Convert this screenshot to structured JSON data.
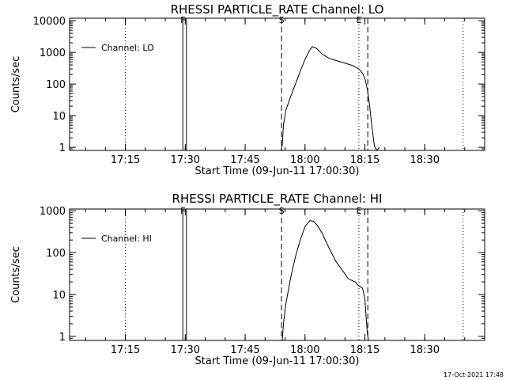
{
  "footer": {
    "timestamp": "17-Oct-2021 17:48"
  },
  "chart_data": [
    {
      "type": "line",
      "title": "RHESSI PARTICLE_RATE Channel: LO",
      "xlabel": "Start Time (09-Jun-11 17:00:30)",
      "ylabel": "Counts/sec",
      "xlim": [
        17.017,
        18.75
      ],
      "ylim": [
        0.8,
        12000
      ],
      "yscale": "log",
      "xticks": [
        {
          "v": 17.25,
          "label": "17:15"
        },
        {
          "v": 17.5,
          "label": "17:30"
        },
        {
          "v": 17.75,
          "label": "17:45"
        },
        {
          "v": 18.0,
          "label": "18:00"
        },
        {
          "v": 18.25,
          "label": "18:15"
        },
        {
          "v": 18.5,
          "label": "18:30"
        }
      ],
      "yticks": [
        {
          "v": 1,
          "label": "1"
        },
        {
          "v": 10,
          "label": "10"
        },
        {
          "v": 100,
          "label": "100"
        },
        {
          "v": 1000,
          "label": "1000"
        },
        {
          "v": 10000,
          "label": "10000"
        }
      ],
      "legend": {
        "placement": "top-left",
        "entries": [
          "Channel: LO"
        ]
      },
      "series": [
        {
          "name": "Channel: LO",
          "x": [
            17.9,
            17.905,
            17.91,
            17.92,
            17.94,
            17.96,
            17.98,
            18.0,
            18.02,
            18.03,
            18.04,
            18.05,
            18.07,
            18.1,
            18.13,
            18.17,
            18.2,
            18.225,
            18.24,
            18.25,
            18.26,
            18.27,
            18.28,
            18.29,
            18.3,
            18.31
          ],
          "y": [
            0.8,
            1.2,
            5,
            15,
            40,
            100,
            250,
            600,
            1200,
            1500,
            1450,
            1300,
            900,
            650,
            550,
            450,
            380,
            300,
            220,
            150,
            70,
            20,
            4,
            1.1,
            0.8,
            1.0
          ]
        }
      ],
      "vlines": [
        {
          "x": 17.25,
          "style": "dotted",
          "label": ""
        },
        {
          "x": 17.49,
          "style": "solid",
          "label": "F"
        },
        {
          "x": 17.505,
          "style": "solid",
          "label": ""
        },
        {
          "x": 17.902,
          "style": "dashed",
          "label": "S"
        },
        {
          "x": 18.225,
          "style": "dotted",
          "label": "E"
        },
        {
          "x": 18.262,
          "style": "dashed",
          "label": ""
        },
        {
          "x": 18.66,
          "style": "dotted",
          "label": ""
        }
      ]
    },
    {
      "type": "line",
      "title": "RHESSI PARTICLE_RATE Channel: HI",
      "xlabel": "Start Time (09-Jun-11 17:00:30)",
      "ylabel": "Counts/sec",
      "xlim": [
        17.017,
        18.75
      ],
      "ylim": [
        0.8,
        1100
      ],
      "yscale": "log",
      "xticks": [
        {
          "v": 17.25,
          "label": "17:15"
        },
        {
          "v": 17.5,
          "label": "17:30"
        },
        {
          "v": 17.75,
          "label": "17:45"
        },
        {
          "v": 18.0,
          "label": "18:00"
        },
        {
          "v": 18.25,
          "label": "18:15"
        },
        {
          "v": 18.5,
          "label": "18:30"
        }
      ],
      "yticks": [
        {
          "v": 1,
          "label": "1"
        },
        {
          "v": 10,
          "label": "10"
        },
        {
          "v": 100,
          "label": "100"
        },
        {
          "v": 1000,
          "label": "1000"
        }
      ],
      "legend": {
        "placement": "top-left",
        "entries": [
          "Channel: HI"
        ]
      },
      "series": [
        {
          "name": "Channel: HI",
          "x": [
            17.905,
            17.91,
            17.92,
            17.94,
            17.96,
            17.98,
            18.0,
            18.02,
            18.035,
            18.05,
            18.07,
            18.1,
            18.13,
            18.16,
            18.18,
            18.2,
            18.21,
            18.22,
            18.24,
            18.25,
            18.255,
            18.26,
            18.265
          ],
          "y": [
            0.8,
            2,
            6,
            25,
            80,
            200,
            420,
            580,
            560,
            460,
            300,
            130,
            60,
            35,
            24,
            21,
            20,
            17,
            14,
            8,
            3,
            1.2,
            0.8
          ]
        }
      ],
      "vlines": [
        {
          "x": 17.25,
          "style": "dotted",
          "label": ""
        },
        {
          "x": 17.49,
          "style": "solid",
          "label": "F"
        },
        {
          "x": 17.505,
          "style": "solid",
          "label": ""
        },
        {
          "x": 17.902,
          "style": "dashed",
          "label": "S"
        },
        {
          "x": 18.225,
          "style": "dotted",
          "label": "E"
        },
        {
          "x": 18.262,
          "style": "dashed",
          "label": ""
        },
        {
          "x": 18.66,
          "style": "dotted",
          "label": ""
        }
      ]
    }
  ]
}
